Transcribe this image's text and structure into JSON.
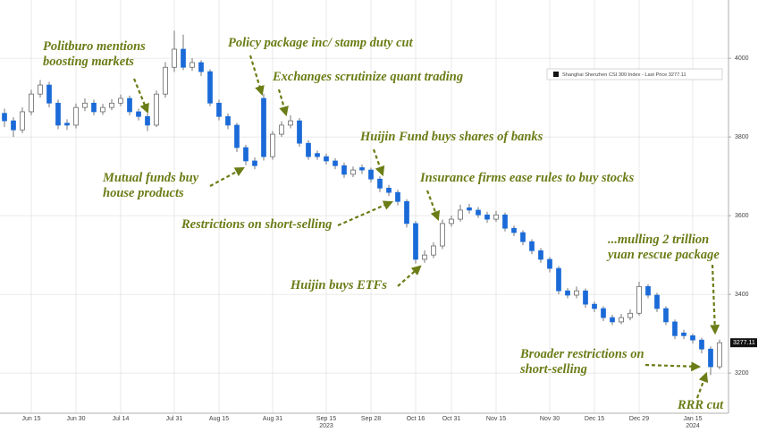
{
  "chart_data": {
    "type": "candlestick",
    "legend": "Shanghai Shenzhen CSI 300 Index - Last Price 3277.11",
    "legend_position": "upper right",
    "up_color": "#ffffff",
    "down_color": "#1a6ad8",
    "grid": true,
    "categories": [
      null,
      null,
      null,
      "Jun 15",
      null,
      null,
      null,
      null,
      "Jun 30",
      null,
      null,
      null,
      null,
      "Jul 14",
      null,
      null,
      null,
      null,
      null,
      "Jul 31",
      null,
      null,
      null,
      null,
      "Aug 15",
      null,
      null,
      null,
      null,
      null,
      "Aug 31",
      null,
      null,
      null,
      null,
      null,
      "Sep 15",
      null,
      null,
      null,
      null,
      "Sep 28",
      null,
      null,
      null,
      null,
      "Oct 16",
      null,
      null,
      null,
      "Oct 31",
      null,
      null,
      null,
      null,
      "Nov 15",
      null,
      null,
      null,
      null,
      null,
      "Nov 30",
      null,
      null,
      null,
      null,
      "Dec 15",
      null,
      null,
      null,
      null,
      "Dec 29",
      null,
      null,
      null,
      null,
      null,
      "Jan 15",
      null,
      null,
      null
    ],
    "year_labels": [
      {
        "text": "2023",
        "under": "Sep 15"
      },
      {
        "text": "2024",
        "under": "Jan 15"
      }
    ],
    "open": [
      3860,
      3841,
      3818,
      3864,
      3909,
      3932,
      3886,
      3835,
      3830,
      3875,
      3886,
      3864,
      3875,
      3886,
      3898,
      3864,
      3852,
      3830,
      3909,
      3977,
      4023,
      3977,
      3989,
      3966,
      3886,
      3852,
      3830,
      3773,
      3739,
      3898,
      3750,
      3807,
      3830,
      3841,
      3784,
      3758,
      3750,
      3739,
      3727,
      3705,
      3722,
      3716,
      3693,
      3670,
      3659,
      3636,
      3580,
      3489,
      3500,
      3523,
      3580,
      3591,
      3620,
      3614,
      3602,
      3591,
      3602,
      3568,
      3557,
      3534,
      3511,
      3489,
      3466,
      3409,
      3398,
      3409,
      3375,
      3364,
      3341,
      3330,
      3341,
      3352,
      3420,
      3398,
      3364,
      3330,
      3302,
      3295,
      3284,
      3261,
      3216
    ],
    "high": [
      3872,
      3850,
      3875,
      3920,
      3945,
      3940,
      3895,
      3845,
      3885,
      3898,
      3895,
      3884,
      3896,
      3908,
      3905,
      3872,
      3860,
      3918,
      3990,
      4070,
      4060,
      4000,
      3995,
      3972,
      3895,
      3860,
      3836,
      3780,
      3748,
      3910,
      3815,
      3840,
      3855,
      3848,
      3792,
      3765,
      3758,
      3746,
      3735,
      3725,
      3730,
      3722,
      3700,
      3678,
      3666,
      3642,
      3586,
      3512,
      3532,
      3590,
      3600,
      3628,
      3630,
      3622,
      3610,
      3612,
      3608,
      3575,
      3563,
      3540,
      3518,
      3495,
      3472,
      3416,
      3420,
      3415,
      3382,
      3370,
      3348,
      3350,
      3362,
      3432,
      3426,
      3404,
      3370,
      3336,
      3310,
      3300,
      3290,
      3268,
      3285
    ],
    "low": [
      3825,
      3800,
      3810,
      3855,
      3900,
      3875,
      3820,
      3818,
      3822,
      3866,
      3855,
      3856,
      3868,
      3878,
      3855,
      3842,
      3815,
      3825,
      3900,
      3965,
      3970,
      3968,
      3955,
      3878,
      3842,
      3820,
      3762,
      3728,
      3718,
      3740,
      3742,
      3800,
      3822,
      3775,
      3742,
      3742,
      3730,
      3718,
      3696,
      3698,
      3706,
      3684,
      3660,
      3650,
      3626,
      3570,
      3478,
      3480,
      3492,
      3515,
      3572,
      3585,
      3605,
      3594,
      3582,
      3584,
      3560,
      3548,
      3525,
      3502,
      3480,
      3456,
      3400,
      3390,
      3390,
      3366,
      3355,
      3332,
      3322,
      3324,
      3334,
      3346,
      3390,
      3355,
      3322,
      3286,
      3286,
      3275,
      3250,
      3195,
      3210
    ],
    "close": [
      3841,
      3818,
      3864,
      3909,
      3932,
      3886,
      3830,
      3830,
      3875,
      3886,
      3864,
      3875,
      3886,
      3898,
      3864,
      3852,
      3830,
      3909,
      3977,
      4023,
      3977,
      3989,
      3966,
      3886,
      3852,
      3830,
      3773,
      3739,
      3727,
      3750,
      3807,
      3830,
      3841,
      3784,
      3750,
      3750,
      3739,
      3727,
      3705,
      3716,
      3716,
      3693,
      3670,
      3659,
      3636,
      3580,
      3489,
      3500,
      3523,
      3580,
      3591,
      3614,
      3614,
      3602,
      3591,
      3602,
      3568,
      3557,
      3534,
      3511,
      3489,
      3466,
      3409,
      3398,
      3409,
      3375,
      3364,
      3341,
      3330,
      3341,
      3352,
      3420,
      3398,
      3364,
      3330,
      3295,
      3295,
      3284,
      3261,
      3216,
      3277.11
    ],
    "ylim": [
      3098,
      4148
    ],
    "yticks": [
      3200,
      3400,
      3600,
      3800,
      4000
    ],
    "annotations": [
      {
        "lines": [
          "Politburo mentions",
          "boosting markets"
        ]
      },
      {
        "lines": [
          "Policy package inc/ stamp duty cut"
        ]
      },
      {
        "lines": [
          "Exchanges scrutinize quant trading"
        ]
      },
      {
        "lines": [
          "Huijin Fund buys shares of banks"
        ]
      },
      {
        "lines": [
          "Mutual funds buy",
          "house products"
        ]
      },
      {
        "lines": [
          "Insurance firms ease rules to buy stocks"
        ]
      },
      {
        "lines": [
          "Restrictions on short-selling"
        ]
      },
      {
        "lines": [
          "Huijin buys ETFs"
        ]
      },
      {
        "lines": [
          "...mulling 2 trillion",
          "yuan rescue package"
        ]
      },
      {
        "lines": [
          "Broader restrictions on",
          "short-selling"
        ]
      },
      {
        "lines": [
          "RRR cut"
        ]
      }
    ]
  }
}
